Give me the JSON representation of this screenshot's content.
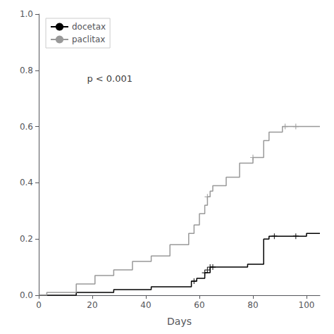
{
  "chart_data": {
    "type": "line",
    "xlabel": "Days",
    "xlim": [
      0,
      105
    ],
    "ylim": [
      0.0,
      1.0
    ],
    "xticks": [
      0,
      20,
      40,
      60,
      80,
      100
    ],
    "yticks": [
      {
        "value": 0.0,
        "label": "0.0"
      },
      0.2,
      0.4,
      0.6,
      0.8,
      {
        "value": 1.0,
        "label": "1.0"
      }
    ],
    "grid": false,
    "legend": "upper left",
    "annotations": [
      {
        "text": "p < 0.001",
        "x": 18,
        "y": 0.77
      }
    ],
    "series": [
      {
        "name": "docetax",
        "color": "black",
        "x": [
          0,
          14,
          14,
          28,
          28,
          42,
          42,
          56,
          57,
          57,
          59,
          59,
          62,
          62,
          64,
          64,
          68,
          78,
          78,
          80,
          84,
          84,
          86,
          86,
          88,
          92,
          96,
          100,
          100,
          105
        ],
        "values": [
          0.0,
          0.0,
          0.01,
          0.01,
          0.02,
          0.02,
          0.03,
          0.03,
          0.03,
          0.05,
          0.05,
          0.06,
          0.06,
          0.08,
          0.08,
          0.1,
          0.1,
          0.1,
          0.11,
          0.11,
          0.11,
          0.2,
          0.2,
          0.21,
          0.21,
          0.21,
          0.21,
          0.21,
          0.22,
          0.22
        ],
        "censor_x": [
          58,
          62,
          63,
          64,
          65,
          88,
          96
        ],
        "censor_y": [
          0.05,
          0.08,
          0.09,
          0.1,
          0.1,
          0.21,
          0.21
        ]
      },
      {
        "name": "paclitax",
        "color": "#999999",
        "x": [
          0,
          3,
          3,
          14,
          14,
          21,
          21,
          28,
          28,
          35,
          35,
          42,
          42,
          49,
          49,
          56,
          56,
          58,
          58,
          60,
          60,
          62,
          62,
          63,
          63,
          64,
          64,
          65,
          65,
          70,
          70,
          75,
          75,
          80,
          80,
          84,
          84,
          86,
          86,
          90,
          91,
          91,
          95,
          96,
          98,
          105
        ],
        "values": [
          0.0,
          0.0,
          0.01,
          0.01,
          0.04,
          0.04,
          0.07,
          0.07,
          0.09,
          0.09,
          0.12,
          0.12,
          0.14,
          0.14,
          0.18,
          0.18,
          0.22,
          0.22,
          0.25,
          0.25,
          0.29,
          0.29,
          0.32,
          0.32,
          0.35,
          0.35,
          0.37,
          0.37,
          0.39,
          0.39,
          0.42,
          0.42,
          0.47,
          0.47,
          0.49,
          0.49,
          0.55,
          0.55,
          0.58,
          0.58,
          0.58,
          0.6,
          0.6,
          0.6,
          0.6,
          0.6
        ],
        "censor_x": [
          63,
          80,
          92,
          96
        ],
        "censor_y": [
          0.35,
          0.49,
          0.6,
          0.6
        ]
      }
    ]
  }
}
